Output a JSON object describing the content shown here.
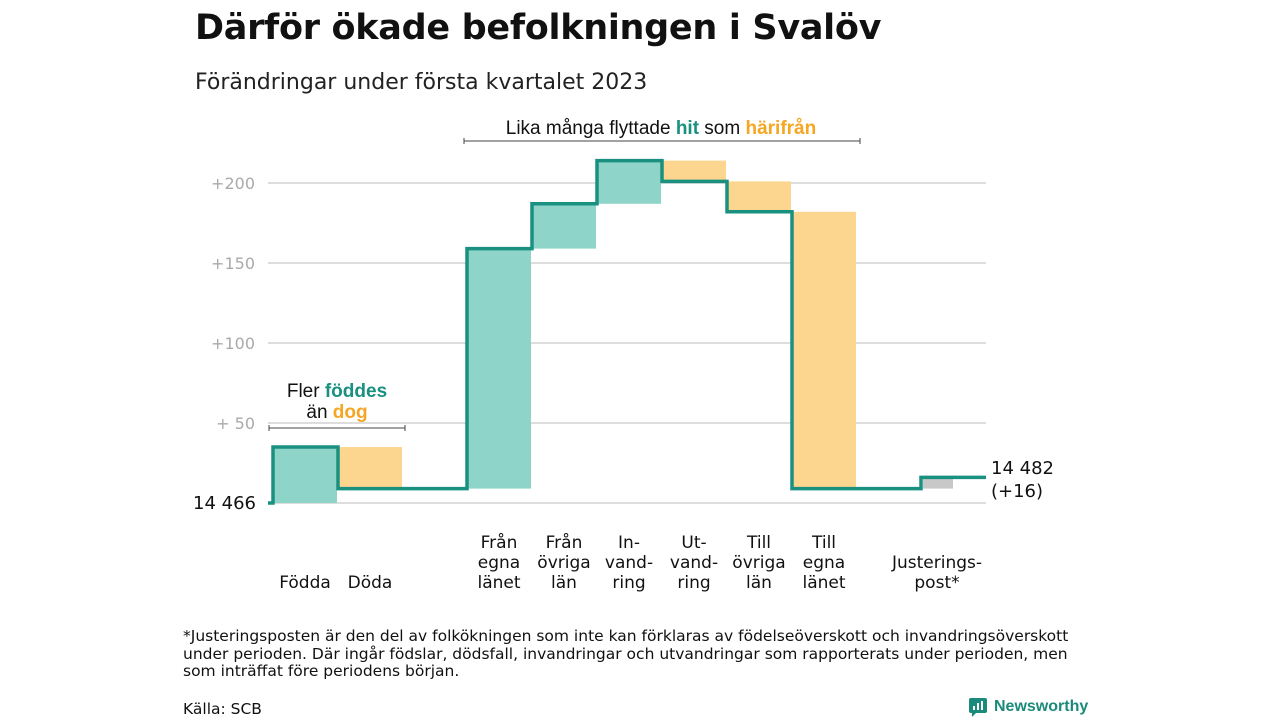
{
  "header": {
    "title": "Därför ökade befolkningen i Svalöv",
    "subtitle": "Förändringar under första kvartalet 2023"
  },
  "colors": {
    "increase": "#8ed4c9",
    "decrease": "#fcd68f",
    "adjustment": "#c8c8c8",
    "step_line": "#1a9080",
    "accent_teal": "#1a9080",
    "accent_orange": "#f5a623",
    "grid": "#dddddd",
    "tick_text": "#aaaaaa"
  },
  "annotations": {
    "migration_bracket": {
      "parts": [
        "Lika många flyttade ",
        "hit",
        " som ",
        "härifrån"
      ]
    },
    "births_bracket": {
      "line1_parts": [
        "Fler ",
        "föddes"
      ],
      "line2_parts": [
        "än ",
        "dog"
      ]
    }
  },
  "chart_data": {
    "type": "waterfall",
    "title": "Därför ökade befolkningen i Svalöv",
    "subtitle": "Förändringar under första kvartalet 2023",
    "baseline_value": 14466,
    "baseline_label": "14 466",
    "end_label_lines": [
      "14 482",
      "(+16)"
    ],
    "ylim": [
      0,
      230
    ],
    "yticks": [
      {
        "value": 50,
        "label": "+ 50"
      },
      {
        "value": 100,
        "label": "+100"
      },
      {
        "value": 150,
        "label": "+150"
      },
      {
        "value": 200,
        "label": "+200"
      }
    ],
    "grid": true,
    "steps": [
      {
        "category": [
          "Födda"
        ],
        "delta": 35,
        "type": "increase"
      },
      {
        "category": [
          "Döda"
        ],
        "delta": -26,
        "type": "decrease"
      },
      {
        "category": [
          "Från",
          "egna",
          "länet"
        ],
        "delta": 150,
        "type": "increase"
      },
      {
        "category": [
          "Från",
          "övriga",
          "län"
        ],
        "delta": 28,
        "type": "increase"
      },
      {
        "category": [
          "In-",
          "vand-",
          "ring"
        ],
        "delta": 27,
        "type": "increase"
      },
      {
        "category": [
          "Ut-",
          "vand-",
          "ring"
        ],
        "delta": -13,
        "type": "decrease"
      },
      {
        "category": [
          "Till",
          "övriga",
          "län"
        ],
        "delta": -19,
        "type": "decrease"
      },
      {
        "category": [
          "Till",
          "egna",
          "länet"
        ],
        "delta": -173,
        "type": "decrease"
      },
      {
        "category": [
          "Justerings-",
          "post*"
        ],
        "delta": 7,
        "type": "adjustment"
      }
    ]
  },
  "footer": {
    "footnote": "*Justeringsposten är den del av folkökningen som inte kan förklaras av födelseöverskott och invandringsöverskott under perioden. Där ingår födslar, dödsfall, invandringar och utvandringar som rapporterats under perioden, men som inträffat före periodens början.",
    "source": "Källa: SCB",
    "brand": "Newsworthy"
  }
}
